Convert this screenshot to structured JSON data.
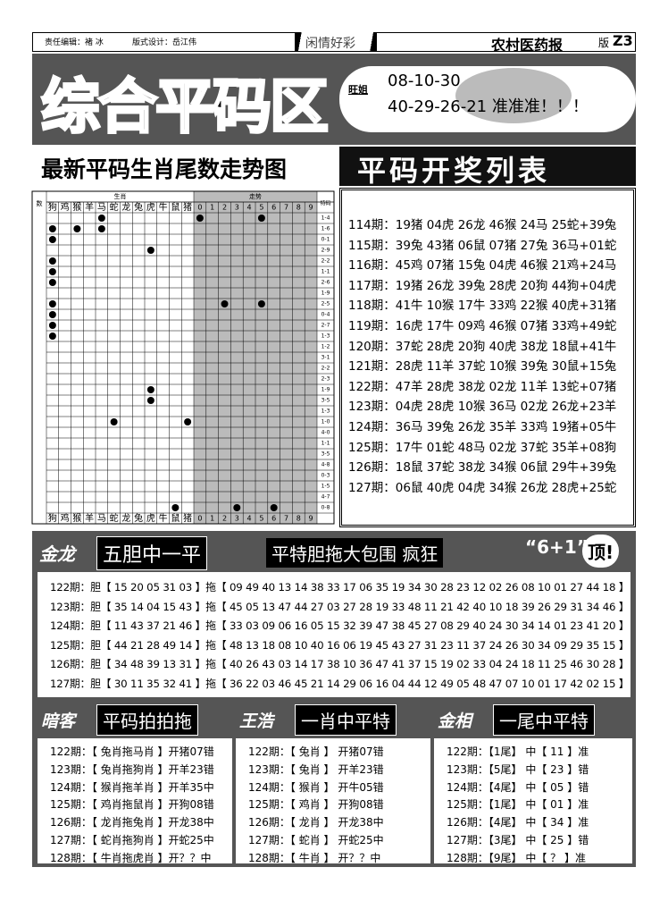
{
  "header": {
    "editor": "责任编辑：褚 冰",
    "designer": "版式设计：岳江伟",
    "section": "闲情好彩",
    "paper": "农村医药报",
    "page_label": "版",
    "page": "Z3"
  },
  "banner": {
    "title": "综合平码区",
    "note_label": "旺姐",
    "note_lines": [
      "08-10-30",
      "40-29-26-21 准准准！！！"
    ]
  },
  "trend": {
    "title": "最新平码生肖尾数走势图",
    "col_label": "数",
    "group_zodiac": "生肖",
    "group_trend": "走势",
    "col_special": "特码",
    "zodiacs": [
      "狗",
      "鸡",
      "猴",
      "羊",
      "马",
      "蛇",
      "龙",
      "兔",
      "虎",
      "牛",
      "鼠",
      "猪"
    ],
    "digits": [
      0,
      1,
      2,
      3,
      4,
      5,
      6,
      7,
      8,
      9
    ],
    "rows": [
      {
        "special": "1-4",
        "zodiac": [
          "马"
        ],
        "trend": [
          0,
          5
        ]
      },
      {
        "special": "1-6",
        "zodiac": [
          "狗",
          "猴",
          "马"
        ],
        "trend": []
      },
      {
        "special": "0-1",
        "zodiac": [
          "狗"
        ],
        "trend": []
      },
      {
        "special": "2-9",
        "zodiac": [
          "虎"
        ],
        "trend": []
      },
      {
        "special": "2-2",
        "zodiac": [
          "狗"
        ],
        "trend": []
      },
      {
        "special": "1-1",
        "zodiac": [
          "狗"
        ],
        "trend": []
      },
      {
        "special": "2-6",
        "zodiac": [
          "狗"
        ],
        "trend": []
      },
      {
        "special": "1-9",
        "zodiac": [],
        "trend": []
      },
      {
        "special": "2-5",
        "zodiac": [
          "狗"
        ],
        "trend": [
          2,
          5
        ]
      },
      {
        "special": "0-4",
        "zodiac": [
          "狗"
        ],
        "trend": []
      },
      {
        "special": "2-7",
        "zodiac": [
          "狗"
        ],
        "trend": []
      },
      {
        "special": "1-3",
        "zodiac": [
          "狗"
        ],
        "trend": []
      },
      {
        "special": "1-2",
        "zodiac": [],
        "trend": []
      },
      {
        "special": "3-1",
        "zodiac": [],
        "trend": []
      },
      {
        "special": "2-2",
        "zodiac": [],
        "trend": []
      },
      {
        "special": "2-3",
        "zodiac": [],
        "trend": []
      },
      {
        "special": "1-9",
        "zodiac": [
          "虎"
        ],
        "trend": []
      },
      {
        "special": "3-5",
        "zodiac": [
          "虎"
        ],
        "trend": []
      },
      {
        "special": "1-3",
        "zodiac": [],
        "trend": []
      },
      {
        "special": "1-0",
        "zodiac": [
          "蛇",
          "猪"
        ],
        "trend": []
      },
      {
        "special": "4-0",
        "zodiac": [],
        "trend": []
      },
      {
        "special": "1-1",
        "zodiac": [],
        "trend": []
      },
      {
        "special": "3-5",
        "zodiac": [],
        "trend": []
      },
      {
        "special": "4-8",
        "zodiac": [],
        "trend": []
      },
      {
        "special": "0-3",
        "zodiac": [],
        "trend": []
      },
      {
        "special": "1-5",
        "zodiac": [],
        "trend": []
      },
      {
        "special": "4-7",
        "zodiac": [],
        "trend": []
      },
      {
        "special": "0-8",
        "zodiac": [
          "鼠"
        ],
        "trend": [
          3,
          6
        ]
      }
    ]
  },
  "draw_list": {
    "title": "平码开奖列表",
    "lines": [
      "114期：19猪 04虎 26龙 46猴 24马 25蛇+39兔",
      "115期：39兔 43猪 06鼠 07猪 27兔 36马+01蛇",
      "116期：45鸡 07猪 15兔 04虎 46猴 21鸡+24马",
      "117期：19猪 26龙 39兔 28虎 20狗 44狗+04虎",
      "118期：41牛 10猴 17牛 33鸡 22猴 40虎+31猪",
      "119期：16虎 17牛 09鸡 46猴 07猪 33鸡+49蛇",
      "120期：37蛇 28虎 20狗 40虎 38龙 18鼠+41牛",
      "121期：28虎 11羊 37蛇 10猴 39兔 30鼠+15兔",
      "122期：47羊 28虎 38龙 02龙 11羊 13蛇+07猪",
      "123期：04虎 28虎 10猴 36马 02龙 26龙+23羊",
      "124期：36马 39兔 26龙 35羊 33鸡 19猪+05牛",
      "125期：17牛 01蛇 48马 02龙 37蛇 35羊+08狗",
      "126期：18鼠 37蛇 38龙 34猴 06鼠 29牛+39兔",
      "127期：06鼠 40虎 04虎 34猴 26龙 28虎+25蛇"
    ]
  },
  "five": {
    "author": "金龙",
    "title": "五胆中一平",
    "slogan": "平特胆拖大包围 疯狂",
    "badge": "“6+1”",
    "top": "顶!",
    "lines": [
      "122期：胆【 15 20 05 31 03 】拖【 09 49 40 13 14 38 33 17 06 35 19 34 30 28 23 12 02 26 08 10 01 27 44 18 】",
      "123期：胆【 35 14 04 15 43 】拖【 45 05 13 47 44 27 03 27 28 19 33 48 11 21 42 40 10 18 39 26 29 31 34 46 】",
      "124期：胆【 11 43 37 21 46 】拖【 33 03 09 06 16 05 15 32 39 47 38 45 27 08 29 40 24 30 34 14 01 23 41 20 】",
      "125期：胆【 44 21 28 49 14 】拖【 48 13 18 08 10 40 16 06 19 45 43 27 31 23 11 37 24 26 30 34 09 29 35 15 】",
      "126期：胆【 34 48 39 13 31 】拖【 40 26 43 03 14 17 38 10 36 47 41 37 15 19 02 33 04 24 18 11 25 46 30 28 】",
      "127期：胆【 30 11 35 32 41 】拖【 36 22 03 46 45 21 14 29 06 16 04 44 12 49 05 48 47 07 10 01 17 42 02 15 】"
    ]
  },
  "columns": [
    {
      "author": "暗客",
      "title": "平码拍拍拖",
      "lines": [
        "122期：【 兔肖拖马肖 】开猪07错",
        "123期：【 兔肖拖狗肖 】开羊23错",
        "124期：【 猴肖拖羊肖 】开羊35中",
        "125期：【 鸡肖拖鼠肖 】开狗08错",
        "126期：【 龙肖拖兔肖 】开龙38中",
        "127期：【 蛇肖拖狗肖 】开蛇25中",
        "128期：【 牛肖拖虎肖 】开？？中"
      ]
    },
    {
      "author": "王浩",
      "title": "一肖中平特",
      "lines": [
        "122期：【 兔肖 】 开猪07错",
        "123期：【 兔肖 】 开羊23错",
        "124期：【 猴肖 】 开牛05错",
        "125期：【 鸡肖 】 开狗08错",
        "126期：【 龙肖 】 开龙38中",
        "127期：【 蛇肖 】 开蛇25中",
        "128期：【 牛肖 】 开？？中"
      ]
    },
    {
      "author": "金相",
      "title": "一尾中平特",
      "lines": [
        "122期：【1尾】 中【 11 】准",
        "123期：【5尾】 中【 23 】错",
        "124期：【4尾】 中【 05 】错",
        "125期：【1尾】 中【 01 】准",
        "126期：【4尾】 中【 34 】准",
        "127期：【3尾】 中【 25 】错",
        "128期：【9尾】 中【 ？ 】准"
      ]
    }
  ]
}
